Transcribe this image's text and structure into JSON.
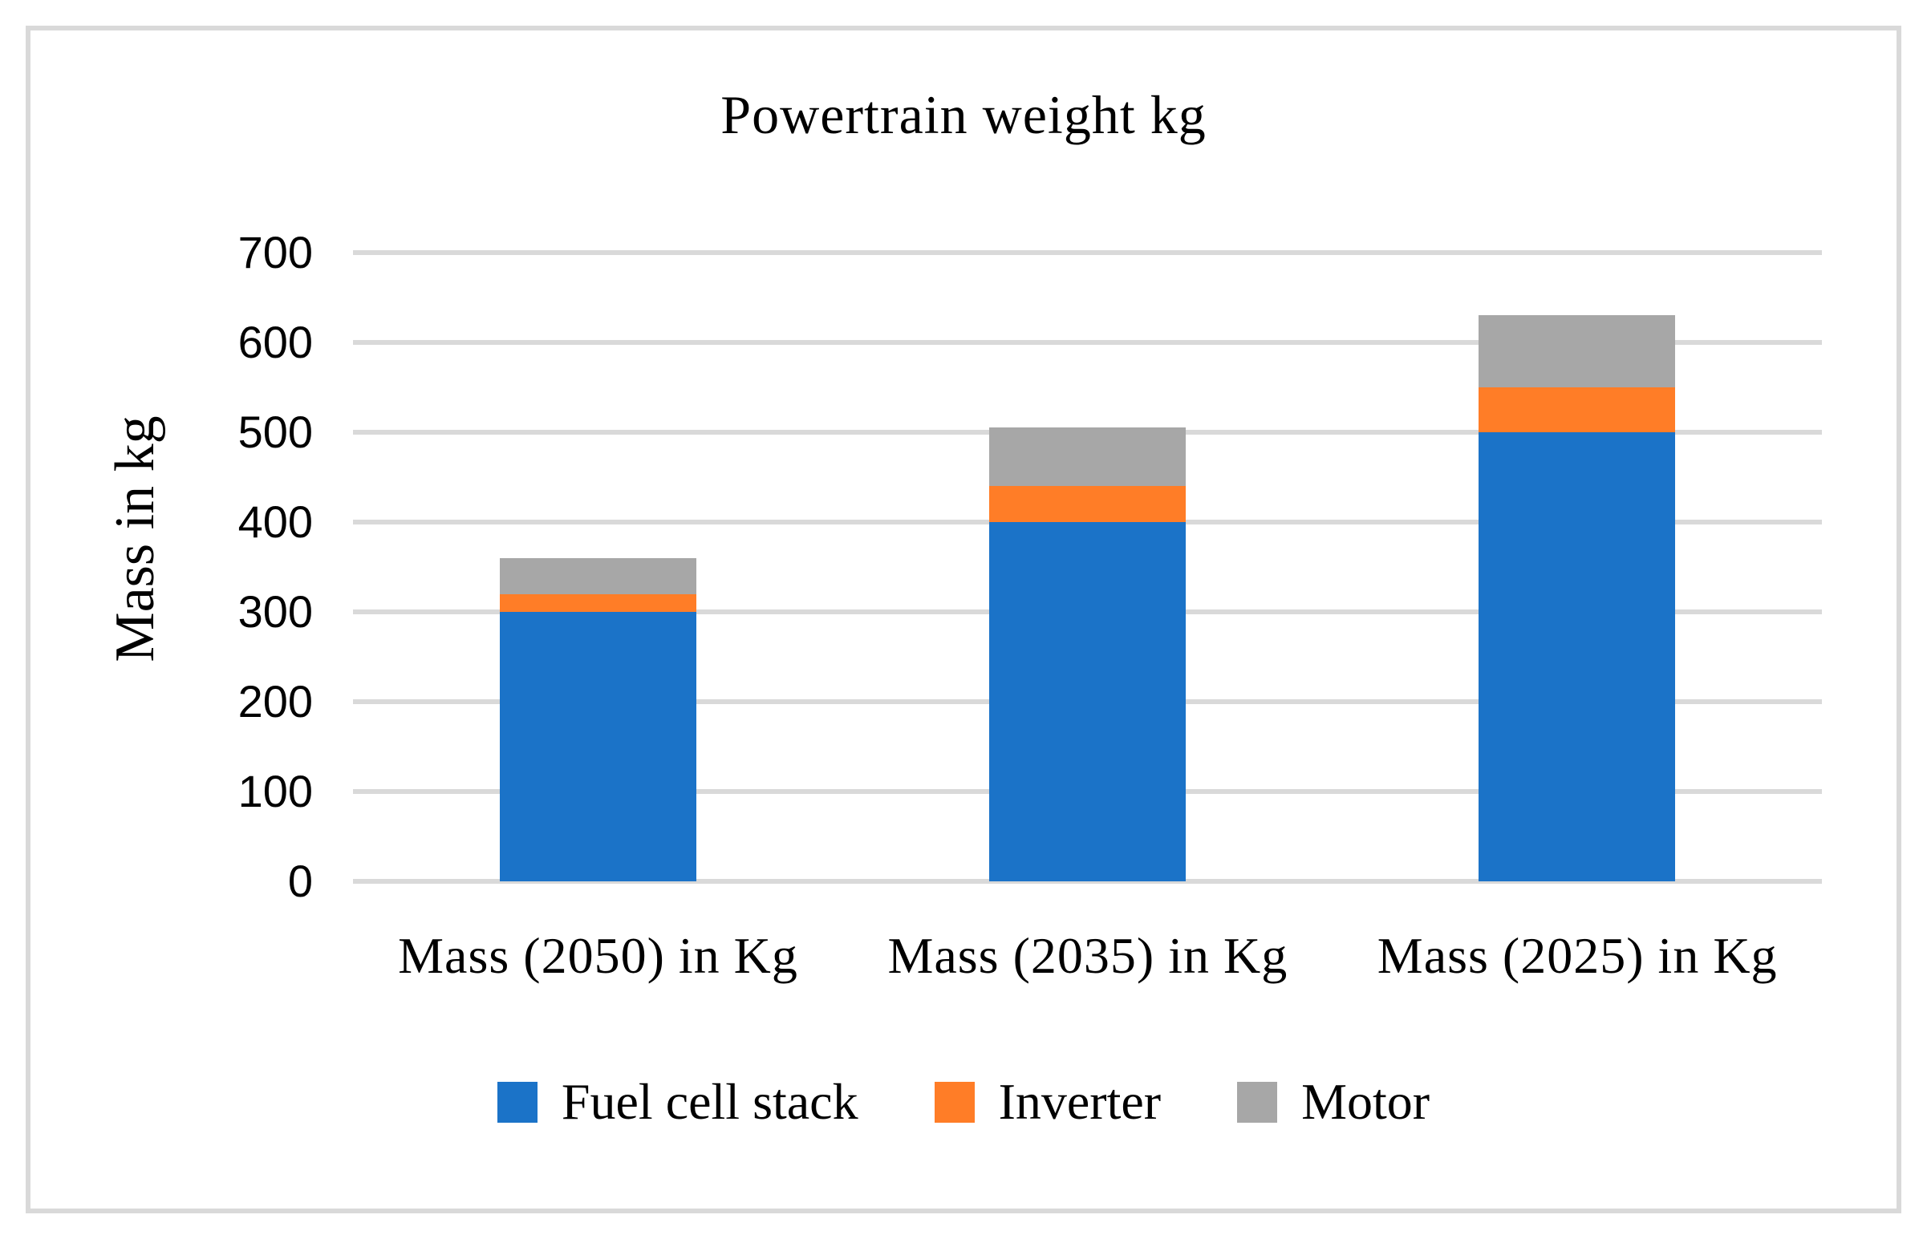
{
  "chart_data": {
    "type": "bar",
    "stacked": true,
    "title": "Powertrain weight kg",
    "categories": [
      "Mass (2050) in Kg",
      "Mass (2035) in Kg",
      "Mass (2025) in Kg"
    ],
    "series": [
      {
        "name": "Fuel cell stack",
        "color": "#1B73C8",
        "values": [
          300,
          400,
          500
        ]
      },
      {
        "name": "Inverter",
        "color": "#FF7D27",
        "values": [
          20,
          40,
          50
        ]
      },
      {
        "name": "Motor",
        "color": "#A7A7A7",
        "values": [
          40,
          65,
          80
        ]
      }
    ],
    "totals": [
      360,
      505,
      630
    ],
    "xlabel": "",
    "ylabel": "Mass in kg",
    "ylim": [
      0,
      700
    ],
    "yticks": [
      0,
      100,
      200,
      300,
      400,
      500,
      600,
      700
    ],
    "grid": true,
    "gridline_color": "#D9D9D9",
    "border_color": "#D9D9D9",
    "background_color": "#FFFFFF",
    "text_color": "#000000",
    "legend_position": "bottom"
  }
}
